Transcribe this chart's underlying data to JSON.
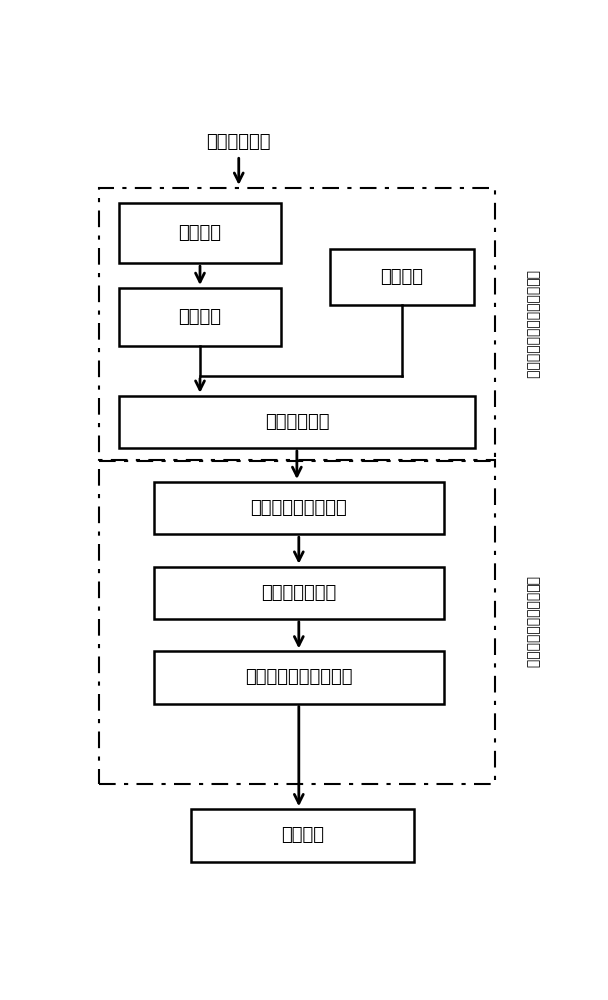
{
  "title": "工作负载输入",
  "box_logic": "逻辑仿真",
  "box_signal": "信号概率",
  "box_circuit": "电路网表",
  "box_critical": "关键路径提取",
  "box_all_gates": "关键路径中的所有门",
  "box_potential": "潜在关键门集合",
  "box_weight": "权重计算，关键门排序",
  "box_result": "结果输出",
  "label_top": "基于工作负载关键路径的提取",
  "label_bottom": "关键路径中关键门的确定",
  "bg_color": "#ffffff",
  "box_color": "#ffffff",
  "line_color": "#000000",
  "text_color": "#000000",
  "font_size": 13
}
